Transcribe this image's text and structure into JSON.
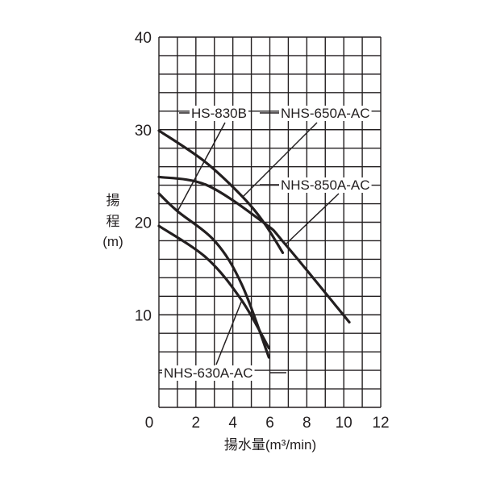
{
  "chart_data": {
    "type": "line",
    "title": "",
    "xlabel": "揚水量(m³/min)",
    "ylabel_lines": [
      "揚",
      "程",
      "(m)"
    ],
    "xlim": [
      0,
      12
    ],
    "ylim": [
      0,
      40
    ],
    "x_ticks": [
      0,
      2,
      4,
      6,
      8,
      10,
      12
    ],
    "y_ticks": [
      10,
      20,
      30,
      40
    ],
    "grid": true,
    "series": [
      {
        "name": "NHS-650A-AC",
        "x": [
          0,
          2.45,
          4.5,
          5.7,
          6.7
        ],
        "y": [
          29.9,
          26.6,
          22.8,
          19.9,
          16.7
        ]
      },
      {
        "name": "NHS-850A-AC",
        "x": [
          0,
          2.6,
          5.7,
          6.8,
          10.3
        ],
        "y": [
          24.9,
          24.0,
          19.9,
          17.7,
          9.2
        ]
      },
      {
        "name": "HS-830B",
        "x": [
          0,
          1.0,
          3.05,
          4.5,
          5.95
        ],
        "y": [
          23.1,
          21.2,
          17.9,
          13.2,
          5.4
        ]
      },
      {
        "name": "NHS-630A-AC",
        "x": [
          0,
          2.6,
          4.5,
          5.95
        ],
        "y": [
          19.6,
          16.1,
          11.5,
          6.4
        ]
      }
    ]
  }
}
